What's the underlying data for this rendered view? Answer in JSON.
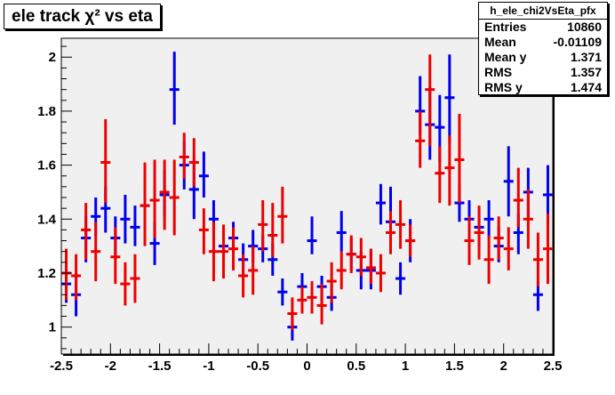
{
  "title": "ele track χ² vs eta",
  "stats": {
    "name": "h_ele_chi2VsEta_pfx",
    "rows": [
      {
        "label": "Entries",
        "value": "10860"
      },
      {
        "label": "Mean",
        "value": "-0.01109"
      },
      {
        "label": "Mean y",
        "value": "1.371"
      },
      {
        "label": "RMS",
        "value": "1.357"
      },
      {
        "label": "RMS y",
        "value": "1.474"
      }
    ]
  },
  "colors": {
    "series_blue": "#0000ee",
    "series_red": "#ee0000",
    "frame_bg": "#f0f0f0"
  },
  "chart_data": {
    "type": "scatter",
    "title": "ele track χ² vs eta",
    "xlabel": "",
    "ylabel": "",
    "xlim": [
      -2.5,
      2.5
    ],
    "ylim": [
      0.9,
      2.07
    ],
    "x_ticks": [
      -2.5,
      -2,
      -1.5,
      -1,
      -0.5,
      0,
      0.5,
      1,
      1.5,
      2,
      2.5
    ],
    "x_tick_labels": [
      "-2.5",
      "-2",
      "-1.5",
      "-1",
      "-0.5",
      "0",
      "0.5",
      "1",
      "1.5",
      "2",
      "2.5"
    ],
    "y_ticks": [
      1,
      1.2,
      1.4,
      1.6,
      1.8,
      2
    ],
    "y_tick_labels": [
      "1",
      "1.2",
      "1.4",
      "1.6",
      "1.8",
      "2"
    ],
    "grid": false,
    "legend": "none",
    "bin_half_width": 0.05,
    "series": [
      {
        "color": "blue",
        "points": [
          {
            "x": -2.45,
            "y": 1.16,
            "lo": 1.09,
            "hi": 1.23
          },
          {
            "x": -2.35,
            "y": 1.12,
            "lo": 1.04,
            "hi": 1.2
          },
          {
            "x": -2.25,
            "y": 1.33,
            "lo": 1.24,
            "hi": 1.41
          },
          {
            "x": -2.15,
            "y": 1.41,
            "lo": 1.34,
            "hi": 1.48
          },
          {
            "x": -2.05,
            "y": 1.44,
            "lo": 1.35,
            "hi": 1.52
          },
          {
            "x": -1.95,
            "y": 1.33,
            "lo": 1.25,
            "hi": 1.41
          },
          {
            "x": -1.85,
            "y": 1.4,
            "lo": 1.31,
            "hi": 1.49
          },
          {
            "x": -1.75,
            "y": 1.37,
            "lo": 1.3,
            "hi": 1.45
          },
          {
            "x": -1.65,
            "y": 1.45,
            "lo": 1.36,
            "hi": 1.53
          },
          {
            "x": -1.55,
            "y": 1.31,
            "lo": 1.23,
            "hi": 1.39
          },
          {
            "x": -1.45,
            "y": 1.49,
            "lo": 1.41,
            "hi": 1.58
          },
          {
            "x": -1.35,
            "y": 1.88,
            "lo": 1.75,
            "hi": 2.02
          },
          {
            "x": -1.25,
            "y": 1.6,
            "lo": 1.51,
            "hi": 1.69
          },
          {
            "x": -1.15,
            "y": 1.51,
            "lo": 1.4,
            "hi": 1.62
          },
          {
            "x": -1.05,
            "y": 1.56,
            "lo": 1.48,
            "hi": 1.65
          },
          {
            "x": -0.95,
            "y": 1.4,
            "lo": 1.32,
            "hi": 1.47
          },
          {
            "x": -0.85,
            "y": 1.3,
            "lo": 1.24,
            "hi": 1.36
          },
          {
            "x": -0.75,
            "y": 1.33,
            "lo": 1.27,
            "hi": 1.39
          },
          {
            "x": -0.65,
            "y": 1.25,
            "lo": 1.19,
            "hi": 1.31
          },
          {
            "x": -0.55,
            "y": 1.3,
            "lo": 1.24,
            "hi": 1.36
          },
          {
            "x": -0.45,
            "y": 1.29,
            "lo": 1.24,
            "hi": 1.34
          },
          {
            "x": -0.35,
            "y": 1.25,
            "lo": 1.19,
            "hi": 1.31
          },
          {
            "x": -0.25,
            "y": 1.13,
            "lo": 1.08,
            "hi": 1.18
          },
          {
            "x": -0.15,
            "y": 1.0,
            "lo": 0.95,
            "hi": 1.05
          },
          {
            "x": -0.05,
            "y": 1.15,
            "lo": 1.1,
            "hi": 1.2
          },
          {
            "x": 0.05,
            "y": 1.32,
            "lo": 1.27,
            "hi": 1.41
          },
          {
            "x": 0.15,
            "y": 1.15,
            "lo": 1.08,
            "hi": 1.19
          },
          {
            "x": 0.25,
            "y": 1.11,
            "lo": 1.06,
            "hi": 1.16
          },
          {
            "x": 0.35,
            "y": 1.35,
            "lo": 1.28,
            "hi": 1.43
          },
          {
            "x": 0.45,
            "y": 1.27,
            "lo": 1.21,
            "hi": 1.33
          },
          {
            "x": 0.55,
            "y": 1.21,
            "lo": 1.14,
            "hi": 1.28
          },
          {
            "x": 0.65,
            "y": 1.21,
            "lo": 1.14,
            "hi": 1.29
          },
          {
            "x": 0.75,
            "y": 1.46,
            "lo": 1.38,
            "hi": 1.53
          },
          {
            "x": 0.85,
            "y": 1.39,
            "lo": 1.28,
            "hi": 1.52
          },
          {
            "x": 0.95,
            "y": 1.18,
            "lo": 1.12,
            "hi": 1.24
          },
          {
            "x": 1.05,
            "y": 1.32,
            "lo": 1.24,
            "hi": 1.4
          },
          {
            "x": 1.15,
            "y": 1.8,
            "lo": 1.71,
            "hi": 1.93
          },
          {
            "x": 1.25,
            "y": 1.75,
            "lo": 1.62,
            "hi": 1.89
          },
          {
            "x": 1.35,
            "y": 1.74,
            "lo": 1.61,
            "hi": 1.86
          },
          {
            "x": 1.45,
            "y": 1.85,
            "lo": 1.68,
            "hi": 2.01
          },
          {
            "x": 1.55,
            "y": 1.46,
            "lo": 1.39,
            "hi": 1.53
          },
          {
            "x": 1.65,
            "y": 1.4,
            "lo": 1.32,
            "hi": 1.47
          },
          {
            "x": 1.75,
            "y": 1.37,
            "lo": 1.29,
            "hi": 1.44
          },
          {
            "x": 1.85,
            "y": 1.4,
            "lo": 1.33,
            "hi": 1.47
          },
          {
            "x": 1.95,
            "y": 1.3,
            "lo": 1.24,
            "hi": 1.37
          },
          {
            "x": 2.05,
            "y": 1.54,
            "lo": 1.41,
            "hi": 1.67
          },
          {
            "x": 2.15,
            "y": 1.35,
            "lo": 1.27,
            "hi": 1.42
          },
          {
            "x": 2.25,
            "y": 1.5,
            "lo": 1.4,
            "hi": 1.59
          },
          {
            "x": 2.35,
            "y": 1.12,
            "lo": 1.06,
            "hi": 1.17
          },
          {
            "x": 2.45,
            "y": 1.49,
            "lo": 1.38,
            "hi": 1.6
          }
        ]
      },
      {
        "color": "red",
        "points": [
          {
            "x": -2.45,
            "y": 1.2,
            "lo": 1.1,
            "hi": 1.29
          },
          {
            "x": -2.35,
            "y": 1.19,
            "lo": 1.1,
            "hi": 1.27
          },
          {
            "x": -2.25,
            "y": 1.36,
            "lo": 1.25,
            "hi": 1.46
          },
          {
            "x": -2.15,
            "y": 1.28,
            "lo": 1.17,
            "hi": 1.39
          },
          {
            "x": -2.05,
            "y": 1.61,
            "lo": 1.46,
            "hi": 1.77
          },
          {
            "x": -1.95,
            "y": 1.26,
            "lo": 1.16,
            "hi": 1.37
          },
          {
            "x": -1.85,
            "y": 1.16,
            "lo": 1.08,
            "hi": 1.24
          },
          {
            "x": -1.75,
            "y": 1.18,
            "lo": 1.09,
            "hi": 1.27
          },
          {
            "x": -1.65,
            "y": 1.45,
            "lo": 1.3,
            "hi": 1.61
          },
          {
            "x": -1.55,
            "y": 1.47,
            "lo": 1.33,
            "hi": 1.62
          },
          {
            "x": -1.45,
            "y": 1.5,
            "lo": 1.36,
            "hi": 1.62
          },
          {
            "x": -1.35,
            "y": 1.48,
            "lo": 1.34,
            "hi": 1.62
          },
          {
            "x": -1.25,
            "y": 1.63,
            "lo": 1.55,
            "hi": 1.72
          },
          {
            "x": -1.15,
            "y": 1.61,
            "lo": 1.52,
            "hi": 1.7
          },
          {
            "x": -1.05,
            "y": 1.36,
            "lo": 1.27,
            "hi": 1.44
          },
          {
            "x": -0.95,
            "y": 1.28,
            "lo": 1.17,
            "hi": 1.39
          },
          {
            "x": -0.85,
            "y": 1.28,
            "lo": 1.18,
            "hi": 1.38
          },
          {
            "x": -0.75,
            "y": 1.29,
            "lo": 1.21,
            "hi": 1.37
          },
          {
            "x": -0.65,
            "y": 1.19,
            "lo": 1.11,
            "hi": 1.27
          },
          {
            "x": -0.55,
            "y": 1.21,
            "lo": 1.12,
            "hi": 1.3
          },
          {
            "x": -0.45,
            "y": 1.38,
            "lo": 1.28,
            "hi": 1.47
          },
          {
            "x": -0.35,
            "y": 1.34,
            "lo": 1.26,
            "hi": 1.46
          },
          {
            "x": -0.25,
            "y": 1.41,
            "lo": 1.31,
            "hi": 1.52
          },
          {
            "x": -0.15,
            "y": 1.05,
            "lo": 0.99,
            "hi": 1.11
          },
          {
            "x": -0.05,
            "y": 1.1,
            "lo": 1.05,
            "hi": 1.15
          },
          {
            "x": 0.05,
            "y": 1.11,
            "lo": 1.05,
            "hi": 1.17
          },
          {
            "x": 0.15,
            "y": 1.08,
            "lo": 1.01,
            "hi": 1.16
          },
          {
            "x": 0.25,
            "y": 1.17,
            "lo": 1.09,
            "hi": 1.24
          },
          {
            "x": 0.35,
            "y": 1.21,
            "lo": 1.14,
            "hi": 1.28
          },
          {
            "x": 0.45,
            "y": 1.27,
            "lo": 1.2,
            "hi": 1.34
          },
          {
            "x": 0.55,
            "y": 1.26,
            "lo": 1.19,
            "hi": 1.33
          },
          {
            "x": 0.65,
            "y": 1.22,
            "lo": 1.16,
            "hi": 1.29
          },
          {
            "x": 0.75,
            "y": 1.2,
            "lo": 1.13,
            "hi": 1.27
          },
          {
            "x": 0.85,
            "y": 1.35,
            "lo": 1.27,
            "hi": 1.43
          },
          {
            "x": 0.95,
            "y": 1.38,
            "lo": 1.29,
            "hi": 1.47
          },
          {
            "x": 1.05,
            "y": 1.32,
            "lo": 1.26,
            "hi": 1.38
          },
          {
            "x": 1.15,
            "y": 1.69,
            "lo": 1.59,
            "hi": 1.8
          },
          {
            "x": 1.25,
            "y": 1.88,
            "lo": 1.67,
            "hi": 2.01
          },
          {
            "x": 1.35,
            "y": 1.57,
            "lo": 1.46,
            "hi": 1.67
          },
          {
            "x": 1.45,
            "y": 1.59,
            "lo": 1.45,
            "hi": 1.71
          },
          {
            "x": 1.55,
            "y": 1.62,
            "lo": 1.46,
            "hi": 1.79
          },
          {
            "x": 1.65,
            "y": 1.32,
            "lo": 1.23,
            "hi": 1.41
          },
          {
            "x": 1.75,
            "y": 1.35,
            "lo": 1.25,
            "hi": 1.45
          },
          {
            "x": 1.85,
            "y": 1.25,
            "lo": 1.16,
            "hi": 1.34
          },
          {
            "x": 1.95,
            "y": 1.33,
            "lo": 1.25,
            "hi": 1.41
          },
          {
            "x": 2.05,
            "y": 1.29,
            "lo": 1.21,
            "hi": 1.37
          },
          {
            "x": 2.15,
            "y": 1.47,
            "lo": 1.37,
            "hi": 1.59
          },
          {
            "x": 2.25,
            "y": 1.4,
            "lo": 1.29,
            "hi": 1.51
          },
          {
            "x": 2.35,
            "y": 1.25,
            "lo": 1.15,
            "hi": 1.35
          },
          {
            "x": 2.45,
            "y": 1.29,
            "lo": 1.16,
            "hi": 1.42
          }
        ]
      }
    ]
  }
}
